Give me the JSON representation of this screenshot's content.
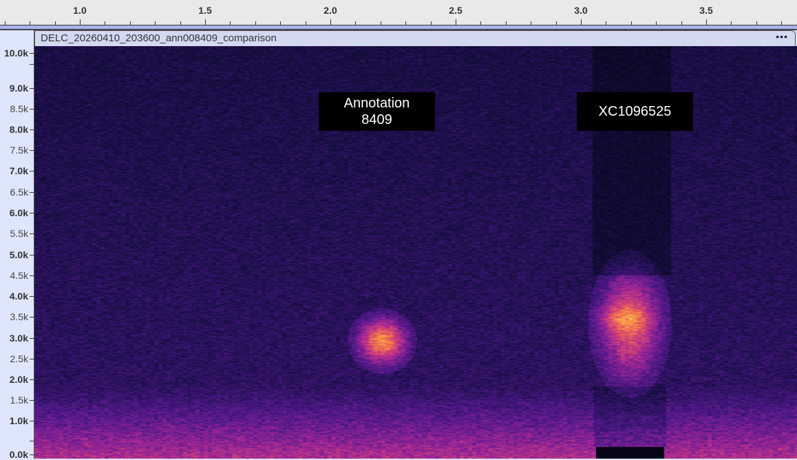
{
  "ruler": {
    "unit": "seconds",
    "labels": [
      "1.0",
      "1.5",
      "2.0",
      "2.5",
      "3.0",
      "3.5"
    ]
  },
  "track": {
    "name": "DELC_20260410_203600_ann008409_comparison",
    "menu_icon": "more-dots-icon",
    "menu_label": "•••"
  },
  "frequency_axis": {
    "labels": [
      "10.0k",
      "9.0k",
      "8.5k",
      "8.0k",
      "7.5k",
      "7.0k",
      "6.5k",
      "6.0k",
      "5.5k",
      "5.0k",
      "4.5k",
      "4.0k",
      "3.5k",
      "3.0k",
      "2.5k",
      "2.0k",
      "1.5k",
      "1.0k",
      "0.0k"
    ]
  },
  "spectrogram": {
    "colormap": "magma",
    "colors": {
      "low": "#0b0b2a",
      "mid": "#6a2a9a",
      "high": "#f08a30",
      "peak": "#ffc060"
    }
  },
  "annotations": [
    {
      "label": "Annotation\n8409"
    },
    {
      "label": "XC1096525"
    }
  ]
}
